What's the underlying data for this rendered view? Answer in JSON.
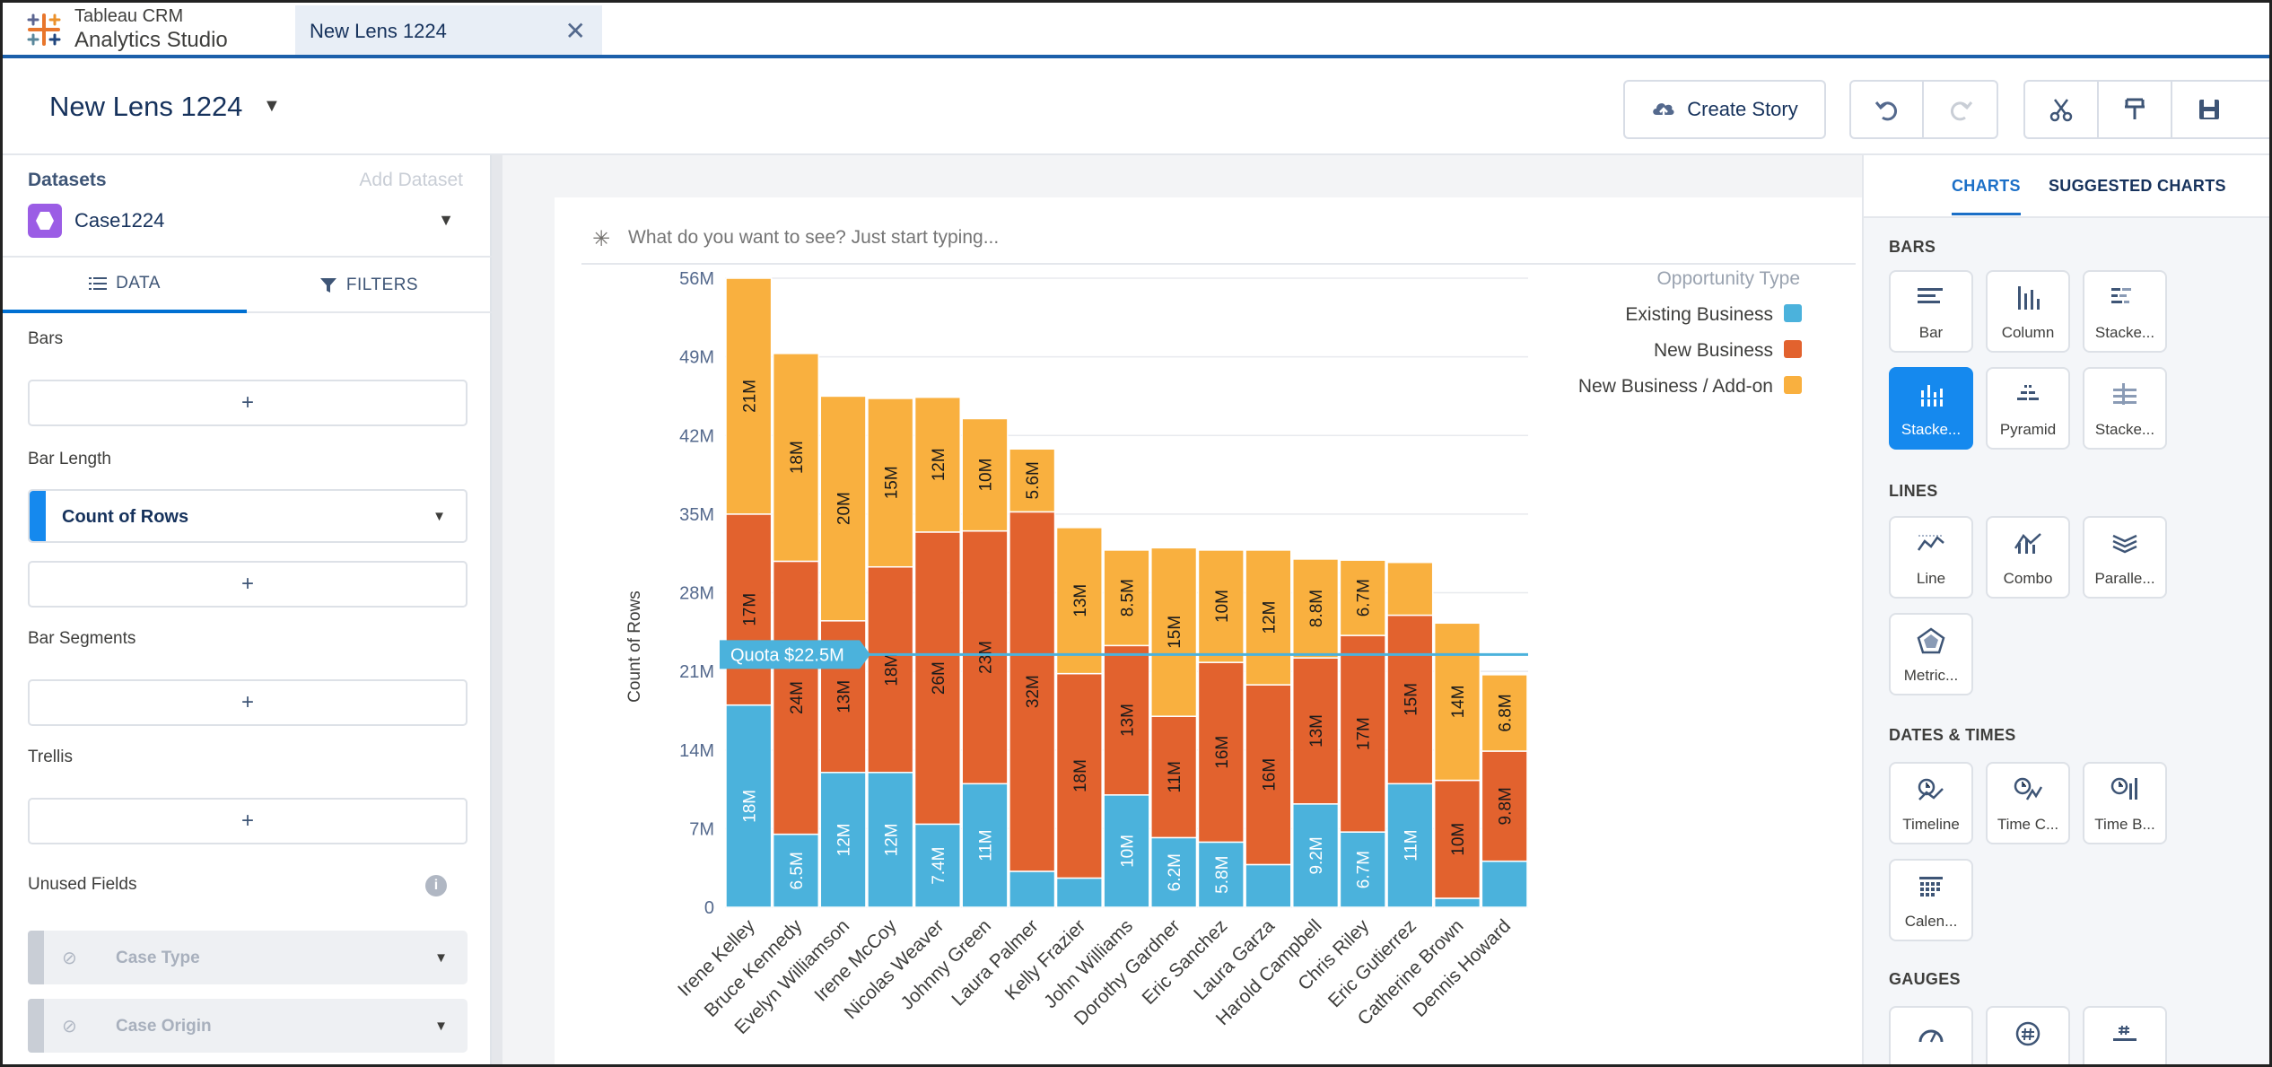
{
  "app": {
    "brand_line1": "Tableau CRM",
    "brand_line2": "Analytics Studio"
  },
  "tab": {
    "label": "New Lens 1224",
    "close": "✕"
  },
  "header": {
    "lens_title": "New Lens 1224",
    "create_story": "Create Story"
  },
  "left": {
    "datasets_label": "Datasets",
    "add_dataset": "Add Dataset",
    "dataset_name": "Case1224",
    "tab_data": "DATA",
    "tab_filters": "FILTERS",
    "bars_label": "Bars",
    "bar_length_label": "Bar Length",
    "bar_length_field": "Count of Rows",
    "bar_segments_label": "Bar Segments",
    "trellis_label": "Trellis",
    "unused_label": "Unused Fields",
    "info": "i",
    "plus": "+",
    "unused_fields": [
      "Case Type",
      "Case Origin"
    ]
  },
  "query": {
    "placeholder": "What do you want to see? Just start typing..."
  },
  "right": {
    "tab_charts": "CHARTS",
    "tab_suggested": "SUGGESTED CHARTS",
    "sec_bars": "BARS",
    "sec_lines": "LINES",
    "sec_dates": "DATES & TIMES",
    "sec_gauges": "GAUGES",
    "bars": [
      "Bar",
      "Column",
      "Stacke...",
      "Stacke...",
      "Pyramid",
      "Stacke..."
    ],
    "lines": [
      "Line",
      "Combo",
      "Paralle...",
      "Metric..."
    ],
    "dates": [
      "Timeline",
      "Time C...",
      "Time B...",
      "Calen..."
    ]
  },
  "colors": {
    "existing": "#4bb2dc",
    "new": "#e2622e",
    "addon": "#f9b03f",
    "quota": "#4bb2dc",
    "accent": "#1589ee"
  },
  "chart_data": {
    "type": "bar",
    "stacked": true,
    "ylabel": "Count of Rows",
    "yticks": [
      "0",
      "7M",
      "14M",
      "21M",
      "28M",
      "35M",
      "42M",
      "49M",
      "56M"
    ],
    "ylim": [
      0,
      56
    ],
    "legend_title": "Opportunity Type",
    "categories": [
      "Irene Kelley",
      "Bruce Kennedy",
      "Evelyn Williamson",
      "Irene McCoy",
      "Nicolas Weaver",
      "Johnny Green",
      "Laura Palmer",
      "Kelly Frazier",
      "John Williams",
      "Dorothy Gardner",
      "Eric Sanchez",
      "Laura Garza",
      "Harold Campbell",
      "Chris Riley",
      "Eric Gutierrez",
      "Catherine Brown",
      "Dennis Howard"
    ],
    "series": [
      {
        "name": "Existing Business",
        "values": [
          18,
          6.5,
          12,
          12,
          7.4,
          11,
          3.2,
          2.6,
          10,
          6.2,
          5.8,
          3.8,
          9.2,
          6.7,
          11,
          0.8,
          4.1
        ],
        "labels": [
          "18M",
          "6.5M",
          "12M",
          "12M",
          "7.4M",
          "11M",
          "",
          "",
          "10M",
          "6.2M",
          "5.8M",
          "",
          "9.2M",
          "6.7M",
          "11M",
          "",
          ""
        ]
      },
      {
        "name": "New Business",
        "values": [
          17,
          24.3,
          13.5,
          18.3,
          26,
          22.5,
          32,
          18.2,
          13.3,
          10.8,
          16,
          16,
          13,
          17.5,
          15,
          10.5,
          9.8
        ],
        "labels": [
          "17M",
          "24M",
          "13M",
          "18M",
          "26M",
          "23M",
          "32M",
          "18M",
          "13M",
          "11M",
          "16M",
          "16M",
          "13M",
          "17M",
          "15M",
          "10M",
          "9.8M"
        ]
      },
      {
        "name": "New Business / Add-on",
        "values": [
          21,
          18.5,
          20,
          15,
          12,
          10,
          5.6,
          13,
          8.5,
          15,
          10,
          12,
          8.8,
          6.7,
          4.7,
          14,
          6.8
        ],
        "labels": [
          "21M",
          "18M",
          "20M",
          "15M",
          "12M",
          "10M",
          "5.6M",
          "13M",
          "8.5M",
          "15M",
          "10M",
          "12M",
          "8.8M",
          "6.7M",
          "",
          "14M",
          "6.8M"
        ]
      }
    ],
    "quota": {
      "value": 22.5,
      "label": "Quota $22.5M"
    }
  }
}
